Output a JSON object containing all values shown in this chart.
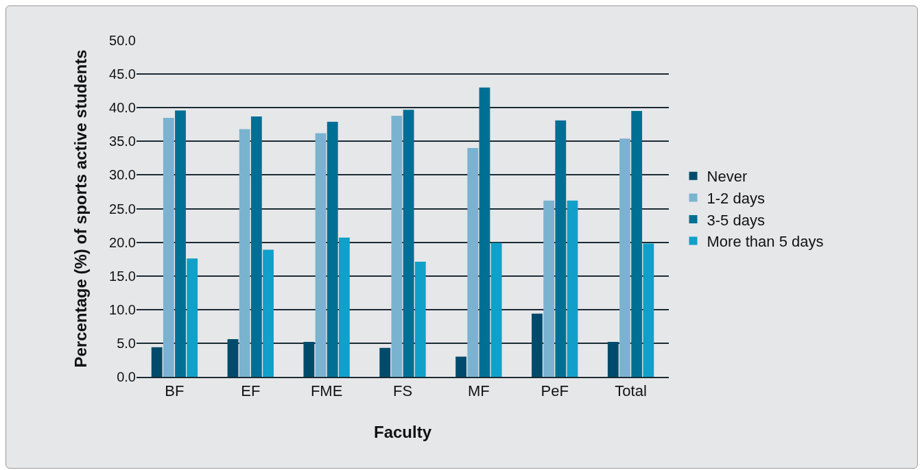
{
  "chart_data": {
    "type": "bar",
    "xlabel": "Faculty",
    "ylabel": "Percentage (%) of sports active students",
    "categories": [
      "BF",
      "EF",
      "FME",
      "FS",
      "MF",
      "PeF",
      "Total"
    ],
    "series": [
      {
        "name": "Never",
        "color": "#004b6b",
        "values": [
          4.4,
          5.6,
          5.2,
          4.3,
          3.0,
          9.4,
          5.2
        ]
      },
      {
        "name": "1-2 days",
        "color": "#7ab3d0",
        "values": [
          38.5,
          36.8,
          36.2,
          38.8,
          34.0,
          26.2,
          35.4
        ]
      },
      {
        "name": "3-5 days",
        "color": "#006f94",
        "values": [
          39.6,
          38.7,
          37.9,
          39.7,
          43.0,
          38.1,
          39.5
        ]
      },
      {
        "name": "More than 5 days",
        "color": "#10a0c9",
        "values": [
          17.6,
          18.9,
          20.7,
          17.1,
          19.9,
          26.2,
          19.8
        ]
      }
    ],
    "ylim": [
      0,
      50
    ],
    "yticks": [
      {
        "value": 0,
        "label": "0.0"
      },
      {
        "value": 5,
        "label": "5.0"
      },
      {
        "value": 10,
        "label": "10.0"
      },
      {
        "value": 15,
        "label": "15.0"
      },
      {
        "value": 20,
        "label": "20.0"
      },
      {
        "value": 25,
        "label": "25.0"
      },
      {
        "value": 30,
        "label": "30.0"
      },
      {
        "value": 35,
        "label": "35.0"
      },
      {
        "value": 40,
        "label": "40.0"
      },
      {
        "value": 45,
        "label": "45.0"
      },
      {
        "value": 50,
        "label": "50.0"
      }
    ],
    "grid": "y",
    "legend": "right"
  }
}
